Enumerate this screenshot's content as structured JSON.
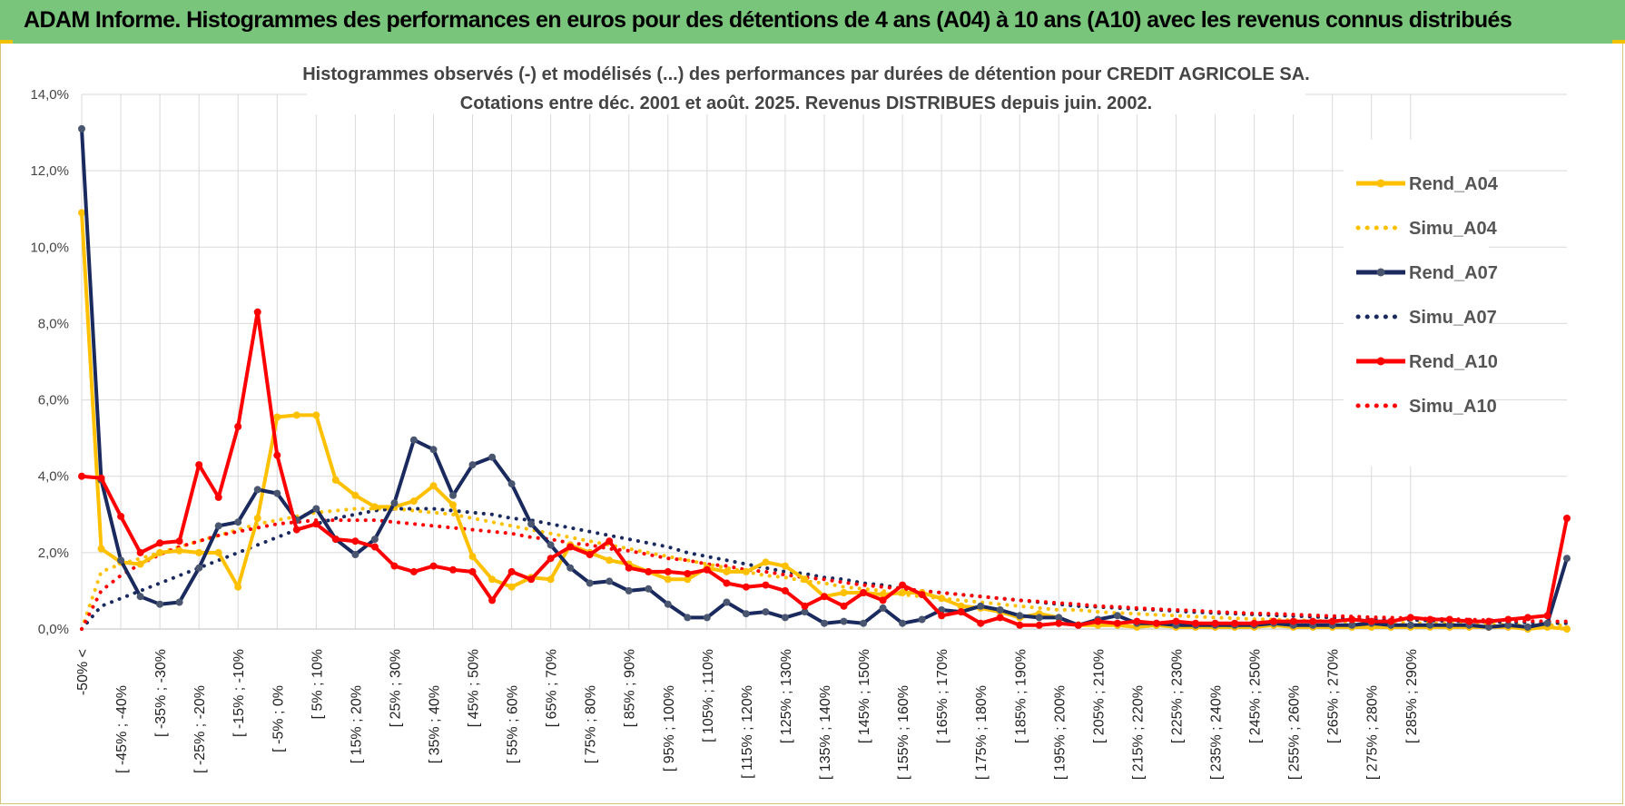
{
  "header": {
    "title": "ADAM Informe. Histogrammes des performances en euros pour des détentions de 4 ans (A04) à 10 ans (A10) avec les revenus connus distribués"
  },
  "chart_data": {
    "type": "line",
    "title_lines": [
      "Histogrammes observés (-) et modélisés (...) des performances par durées de détention pour CREDIT AGRICOLE SA.",
      "Cotations entre déc. 2001 et août. 2025. Revenus DISTRIBUES depuis juin. 2002."
    ],
    "ylim": [
      0,
      14
    ],
    "y_ticks": [
      "0,0%",
      "2,0%",
      "4,0%",
      "6,0%",
      "8,0%",
      "10,0%",
      "12,0%",
      "14,0%"
    ],
    "x_tick_labels": [
      "-50% <",
      "[ -45% ; -40%",
      "[ -35% ; -30%",
      "[ -25% ; -20%",
      "[ -15% ; -10%",
      "[ -5% ; 0%",
      "[ 5% ; 10%",
      "[ 15% ; 20%",
      "[ 25% ; 30%",
      "[ 35% ; 40%",
      "[ 45% ; 50%",
      "[ 55% ; 60%",
      "[ 65% ; 70%",
      "[ 75% ; 80%",
      "[ 85% ; 90%",
      "[ 95% ; 100%",
      "[ 105% ; 110%",
      "[ 115% ; 120%",
      "[ 125% ; 130%",
      "[ 135% ; 140%",
      "[ 145% ; 150%",
      "[ 155% ; 160%",
      "[ 165% ; 170%",
      "[ 175% ; 180%",
      "[ 185% ; 190%",
      "[ 195% ; 200%",
      "[ 205% ; 210%",
      "[ 215% ; 220%",
      "[ 225% ; 230%",
      "[ 235% ; 240%",
      "[ 245% ; 250%",
      "[ 255% ; 260%",
      "[ 265% ; 270%",
      "[ 275% ; 280%",
      "[ 285% ; 290%"
    ],
    "grid": true,
    "legend_position": "right",
    "series": [
      {
        "name": "Rend_A04",
        "style": "solid",
        "color": "#ffc000",
        "values": [
          10.9,
          2.1,
          1.75,
          1.7,
          2.0,
          2.05,
          2.0,
          2.0,
          1.1,
          2.9,
          5.55,
          5.6,
          5.6,
          3.9,
          3.5,
          3.2,
          3.2,
          3.35,
          3.75,
          3.25,
          1.9,
          1.3,
          1.1,
          1.35,
          1.3,
          2.2,
          2.0,
          1.8,
          1.7,
          1.5,
          1.3,
          1.3,
          1.6,
          1.5,
          1.5,
          1.75,
          1.65,
          1.3,
          0.85,
          0.95,
          0.95,
          0.9,
          0.95,
          0.95,
          0.8,
          0.6,
          0.55,
          0.45,
          0.3,
          0.4,
          0.3,
          0.1,
          0.1,
          0.1,
          0.05,
          0.1,
          0.05,
          0.05,
          0.05,
          0.05,
          0.05,
          0.1,
          0.05,
          0.05,
          0.05,
          0.05,
          0.05,
          0.05,
          0.05,
          0.05,
          0.05,
          0.05,
          0.05,
          0.05,
          0.0,
          0.05,
          0.0
        ]
      },
      {
        "name": "Simu_A04",
        "style": "dotted",
        "color": "#ffc000",
        "values": [
          0.0,
          1.5,
          1.7,
          1.85,
          2.0,
          2.15,
          2.3,
          2.45,
          2.6,
          2.75,
          2.85,
          2.95,
          3.05,
          3.1,
          3.15,
          3.15,
          3.15,
          3.1,
          3.05,
          3.0,
          2.9,
          2.8,
          2.7,
          2.6,
          2.5,
          2.4,
          2.3,
          2.2,
          2.1,
          2.0,
          1.9,
          1.8,
          1.7,
          1.6,
          1.5,
          1.4,
          1.35,
          1.25,
          1.2,
          1.1,
          1.05,
          1.0,
          0.9,
          0.85,
          0.8,
          0.75,
          0.7,
          0.65,
          0.6,
          0.55,
          0.5,
          0.5,
          0.45,
          0.42,
          0.4,
          0.37,
          0.35,
          0.32,
          0.3,
          0.28,
          0.26,
          0.25,
          0.23,
          0.22,
          0.2,
          0.19,
          0.18,
          0.17,
          0.16,
          0.15,
          0.14,
          0.13,
          0.12,
          0.11,
          0.1,
          0.1,
          0.09
        ]
      },
      {
        "name": "Rend_A07",
        "style": "solid",
        "color": "#1a2a5e",
        "values": [
          13.1,
          3.9,
          1.8,
          0.85,
          0.65,
          0.7,
          1.6,
          2.7,
          2.8,
          3.65,
          3.55,
          2.85,
          3.15,
          2.35,
          1.95,
          2.35,
          3.3,
          4.95,
          4.7,
          3.5,
          4.3,
          4.5,
          3.8,
          2.75,
          2.2,
          1.6,
          1.2,
          1.25,
          1.0,
          1.05,
          0.65,
          0.3,
          0.3,
          0.7,
          0.4,
          0.45,
          0.3,
          0.45,
          0.15,
          0.2,
          0.15,
          0.55,
          0.15,
          0.25,
          0.5,
          0.45,
          0.6,
          0.5,
          0.35,
          0.3,
          0.3,
          0.1,
          0.25,
          0.35,
          0.15,
          0.15,
          0.1,
          0.1,
          0.1,
          0.1,
          0.1,
          0.15,
          0.1,
          0.1,
          0.1,
          0.1,
          0.15,
          0.1,
          0.1,
          0.1,
          0.1,
          0.1,
          0.05,
          0.1,
          0.05,
          0.15,
          1.85
        ]
      },
      {
        "name": "Simu_A07",
        "style": "dotted",
        "color": "#1a2a5e",
        "values": [
          0.0,
          0.6,
          0.8,
          1.0,
          1.2,
          1.4,
          1.6,
          1.8,
          2.0,
          2.2,
          2.4,
          2.6,
          2.75,
          2.9,
          3.0,
          3.1,
          3.15,
          3.15,
          3.15,
          3.1,
          3.05,
          3.0,
          2.9,
          2.85,
          2.75,
          2.65,
          2.55,
          2.45,
          2.35,
          2.25,
          2.15,
          2.0,
          1.9,
          1.8,
          1.7,
          1.6,
          1.5,
          1.45,
          1.35,
          1.3,
          1.2,
          1.15,
          1.05,
          1.0,
          0.95,
          0.9,
          0.85,
          0.8,
          0.75,
          0.7,
          0.65,
          0.6,
          0.58,
          0.55,
          0.52,
          0.5,
          0.47,
          0.44,
          0.42,
          0.4,
          0.38,
          0.36,
          0.34,
          0.32,
          0.3,
          0.28,
          0.27,
          0.25,
          0.24,
          0.22,
          0.21,
          0.2,
          0.19,
          0.18,
          0.17,
          0.16,
          0.15
        ]
      },
      {
        "name": "Rend_A10",
        "style": "solid",
        "color": "#ff0000",
        "values": [
          4.0,
          3.95,
          2.95,
          2.0,
          2.25,
          2.3,
          4.3,
          3.45,
          5.3,
          8.3,
          4.55,
          2.6,
          2.75,
          2.35,
          2.3,
          2.15,
          1.65,
          1.5,
          1.65,
          1.55,
          1.5,
          0.75,
          1.5,
          1.3,
          1.85,
          2.15,
          1.95,
          2.3,
          1.6,
          1.5,
          1.5,
          1.45,
          1.55,
          1.2,
          1.1,
          1.15,
          1.0,
          0.6,
          0.85,
          0.6,
          0.95,
          0.75,
          1.15,
          0.9,
          0.35,
          0.45,
          0.15,
          0.3,
          0.1,
          0.1,
          0.15,
          0.1,
          0.2,
          0.15,
          0.2,
          0.15,
          0.2,
          0.15,
          0.15,
          0.15,
          0.15,
          0.2,
          0.2,
          0.2,
          0.2,
          0.25,
          0.2,
          0.2,
          0.3,
          0.25,
          0.25,
          0.2,
          0.2,
          0.25,
          0.3,
          0.35,
          2.9
        ]
      },
      {
        "name": "Simu_A10",
        "style": "dotted",
        "color": "#ff0000",
        "values": [
          0.0,
          1.0,
          1.4,
          1.7,
          1.95,
          2.15,
          2.3,
          2.45,
          2.55,
          2.65,
          2.75,
          2.8,
          2.85,
          2.85,
          2.85,
          2.85,
          2.8,
          2.75,
          2.7,
          2.65,
          2.6,
          2.55,
          2.5,
          2.4,
          2.35,
          2.25,
          2.2,
          2.1,
          2.05,
          1.95,
          1.85,
          1.8,
          1.7,
          1.65,
          1.55,
          1.5,
          1.42,
          1.35,
          1.3,
          1.22,
          1.15,
          1.1,
          1.05,
          1.0,
          0.95,
          0.9,
          0.85,
          0.8,
          0.75,
          0.72,
          0.68,
          0.65,
          0.6,
          0.58,
          0.55,
          0.52,
          0.5,
          0.48,
          0.45,
          0.43,
          0.41,
          0.4,
          0.38,
          0.36,
          0.34,
          0.33,
          0.31,
          0.3,
          0.28,
          0.27,
          0.26,
          0.25,
          0.23,
          0.22,
          0.21,
          0.2,
          0.2
        ]
      }
    ]
  }
}
